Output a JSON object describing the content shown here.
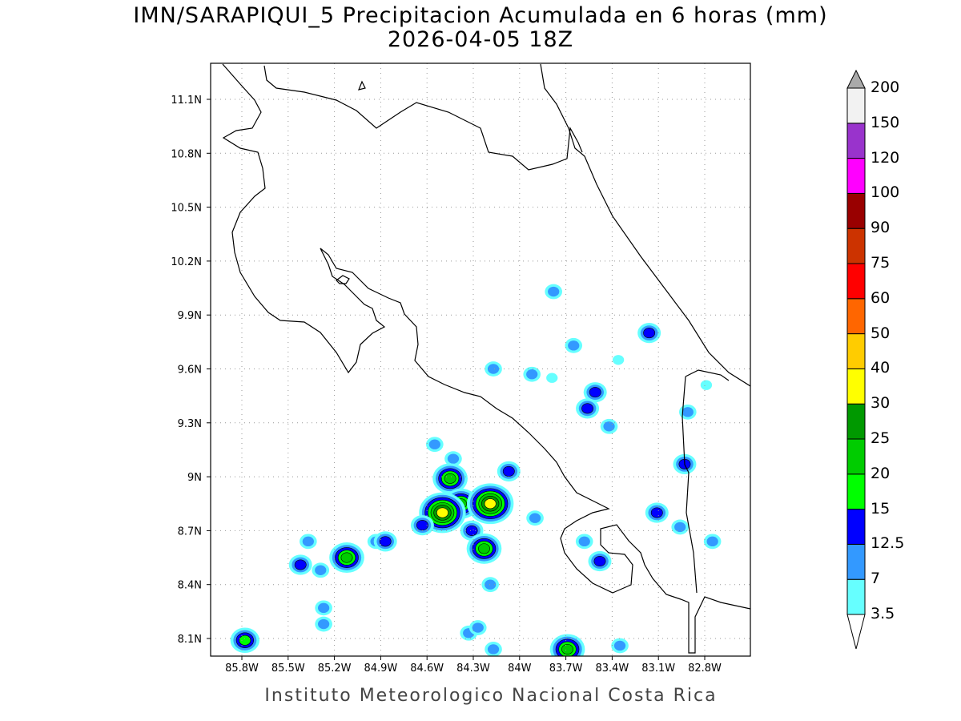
{
  "title": {
    "line1": "IMN/SARAPIQUI_5 Precipitacion Acumulada en 6 horas (mm)",
    "line2": "2026-04-05 18Z"
  },
  "footer": "Instituto Meteorologico Nacional Costa Rica",
  "axes": {
    "lat_labels": [
      "11.1N",
      "10.8N",
      "10.5N",
      "10.2N",
      "9.9N",
      "9.6N",
      "9.3N",
      "9N",
      "8.7N",
      "8.4N",
      "8.1N"
    ],
    "lat_values": [
      11.1,
      10.8,
      10.5,
      10.2,
      9.9,
      9.6,
      9.3,
      9.0,
      8.7,
      8.4,
      8.1
    ],
    "lon_labels": [
      "85.8W",
      "85.5W",
      "85.2W",
      "84.9W",
      "84.6W",
      "84.3W",
      "84W",
      "83.7W",
      "83.4W",
      "83.1W",
      "82.8W"
    ],
    "lon_values": [
      -85.8,
      -85.5,
      -85.2,
      -84.9,
      -84.6,
      -84.3,
      -84.0,
      -83.7,
      -83.4,
      -83.1,
      -82.8
    ]
  },
  "colorbar": {
    "labels": [
      "3.5",
      "7",
      "12.5",
      "15",
      "20",
      "25",
      "30",
      "40",
      "50",
      "60",
      "75",
      "90",
      "100",
      "120",
      "150",
      "200"
    ],
    "colors": [
      "#66ffff",
      "#3399ff",
      "#0000ff",
      "#00ff00",
      "#00cc00",
      "#009900",
      "#ffff00",
      "#ffcc00",
      "#ff6600",
      "#ff0000",
      "#cc3300",
      "#990000",
      "#ff00ff",
      "#9933cc",
      "#f2f2f2"
    ],
    "over_color": "#aaaaaa",
    "under_color": "#ffffff"
  },
  "precip_cells": [
    {
      "lon": -83.78,
      "lat": 10.03,
      "level": 1
    },
    {
      "lon": -83.65,
      "lat": 9.73,
      "level": 1
    },
    {
      "lon": -83.16,
      "lat": 9.8,
      "level": 2
    },
    {
      "lon": -84.17,
      "lat": 9.6,
      "level": 1
    },
    {
      "lon": -83.92,
      "lat": 9.57,
      "level": 1
    },
    {
      "lon": -83.79,
      "lat": 9.55,
      "level": 0
    },
    {
      "lon": -83.51,
      "lat": 9.47,
      "level": 2
    },
    {
      "lon": -83.56,
      "lat": 9.38,
      "level": 2
    },
    {
      "lon": -83.42,
      "lat": 9.28,
      "level": 1
    },
    {
      "lon": -84.55,
      "lat": 9.18,
      "level": 1
    },
    {
      "lon": -84.43,
      "lat": 9.1,
      "level": 1
    },
    {
      "lon": -84.45,
      "lat": 8.99,
      "level": 4
    },
    {
      "lon": -84.07,
      "lat": 9.03,
      "level": 2
    },
    {
      "lon": -84.38,
      "lat": 8.85,
      "level": 4
    },
    {
      "lon": -84.5,
      "lat": 8.8,
      "level": 6
    },
    {
      "lon": -84.19,
      "lat": 8.85,
      "level": 6
    },
    {
      "lon": -84.31,
      "lat": 8.7,
      "level": 2
    },
    {
      "lon": -84.23,
      "lat": 8.6,
      "level": 4
    },
    {
      "lon": -83.11,
      "lat": 8.8,
      "level": 2
    },
    {
      "lon": -83.58,
      "lat": 8.64,
      "level": 1
    },
    {
      "lon": -83.48,
      "lat": 8.53,
      "level": 2
    },
    {
      "lon": -83.9,
      "lat": 8.77,
      "level": 1
    },
    {
      "lon": -85.42,
      "lat": 8.51,
      "level": 2
    },
    {
      "lon": -85.29,
      "lat": 8.48,
      "level": 1
    },
    {
      "lon": -85.37,
      "lat": 8.64,
      "level": 1
    },
    {
      "lon": -85.12,
      "lat": 8.55,
      "level": 4
    },
    {
      "lon": -84.93,
      "lat": 8.64,
      "level": 1
    },
    {
      "lon": -84.87,
      "lat": 8.64,
      "level": 2
    },
    {
      "lon": -85.78,
      "lat": 8.09,
      "level": 3
    },
    {
      "lon": -85.27,
      "lat": 8.18,
      "level": 1
    },
    {
      "lon": -84.33,
      "lat": 8.13,
      "level": 1
    },
    {
      "lon": -83.69,
      "lat": 8.04,
      "level": 4
    },
    {
      "lon": -82.93,
      "lat": 9.07,
      "level": 2
    },
    {
      "lon": -82.91,
      "lat": 9.36,
      "level": 1
    },
    {
      "lon": -82.79,
      "lat": 9.51,
      "level": 0
    },
    {
      "lon": -82.75,
      "lat": 8.64,
      "level": 1
    },
    {
      "lon": -83.35,
      "lat": 8.06,
      "level": 1
    },
    {
      "lon": -84.19,
      "lat": 8.4,
      "level": 1
    },
    {
      "lon": -84.17,
      "lat": 8.04,
      "level": 1
    },
    {
      "lon": -82.96,
      "lat": 8.72,
      "level": 1
    },
    {
      "lon": -83.36,
      "lat": 9.65,
      "level": 0
    },
    {
      "lon": -85.27,
      "lat": 8.27,
      "level": 1
    },
    {
      "lon": -84.27,
      "lat": 8.16,
      "level": 1
    },
    {
      "lon": -84.63,
      "lat": 8.73,
      "level": 2
    }
  ]
}
